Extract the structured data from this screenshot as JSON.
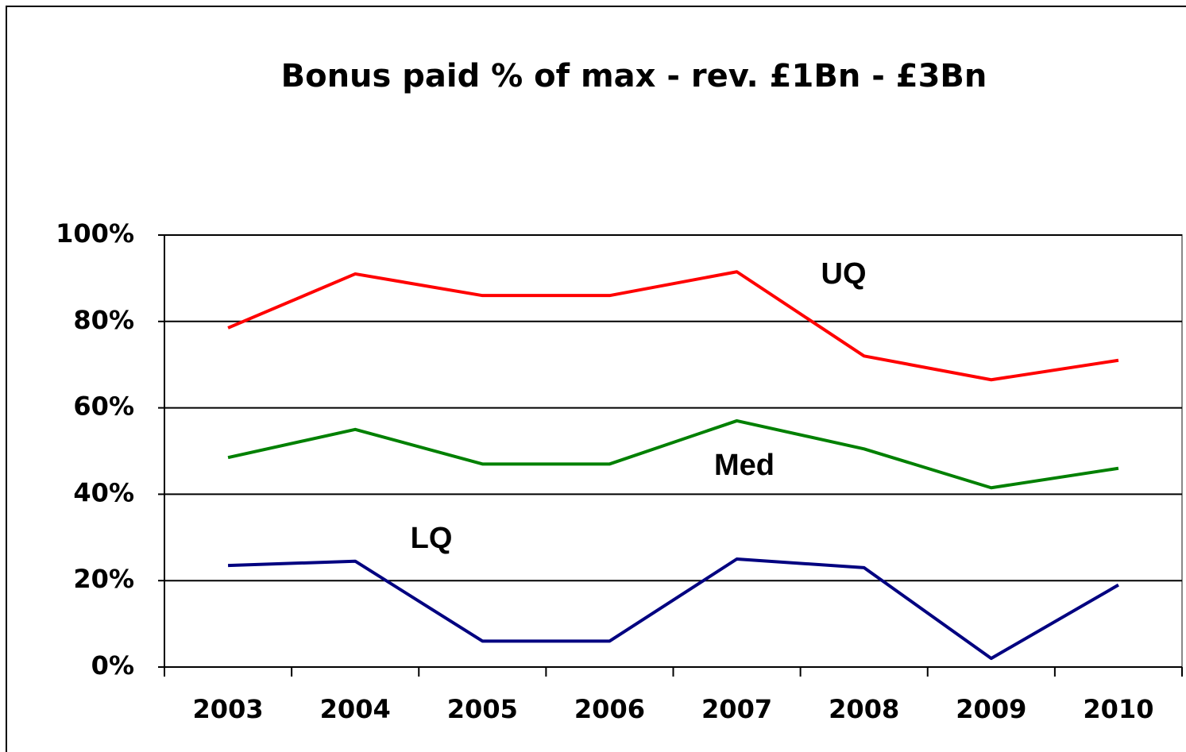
{
  "chart_data": {
    "type": "line",
    "title": "Bonus paid % of max - rev. £1Bn - £3Bn",
    "categories": [
      "2003",
      "2004",
      "2005",
      "2006",
      "2007",
      "2008",
      "2009",
      "2010"
    ],
    "series": [
      {
        "name": "UQ",
        "color": "#ff0000",
        "values": [
          78.5,
          91,
          86,
          86,
          91.5,
          72,
          66.5,
          71
        ]
      },
      {
        "name": "Med",
        "color": "#008000",
        "values": [
          48.5,
          55,
          47,
          47,
          57,
          50.5,
          41.5,
          46
        ]
      },
      {
        "name": "LQ",
        "color": "#000080",
        "values": [
          23.5,
          24.5,
          6,
          6,
          25,
          23,
          2,
          19
        ]
      }
    ],
    "ylim": [
      0,
      100
    ],
    "yticks": [
      {
        "value": 0,
        "label": "0%"
      },
      {
        "value": 20,
        "label": "20%"
      },
      {
        "value": 40,
        "label": "40%"
      },
      {
        "value": 60,
        "label": "60%"
      },
      {
        "value": 80,
        "label": "80%"
      },
      {
        "value": 100,
        "label": "100%"
      }
    ],
    "grid": true
  }
}
